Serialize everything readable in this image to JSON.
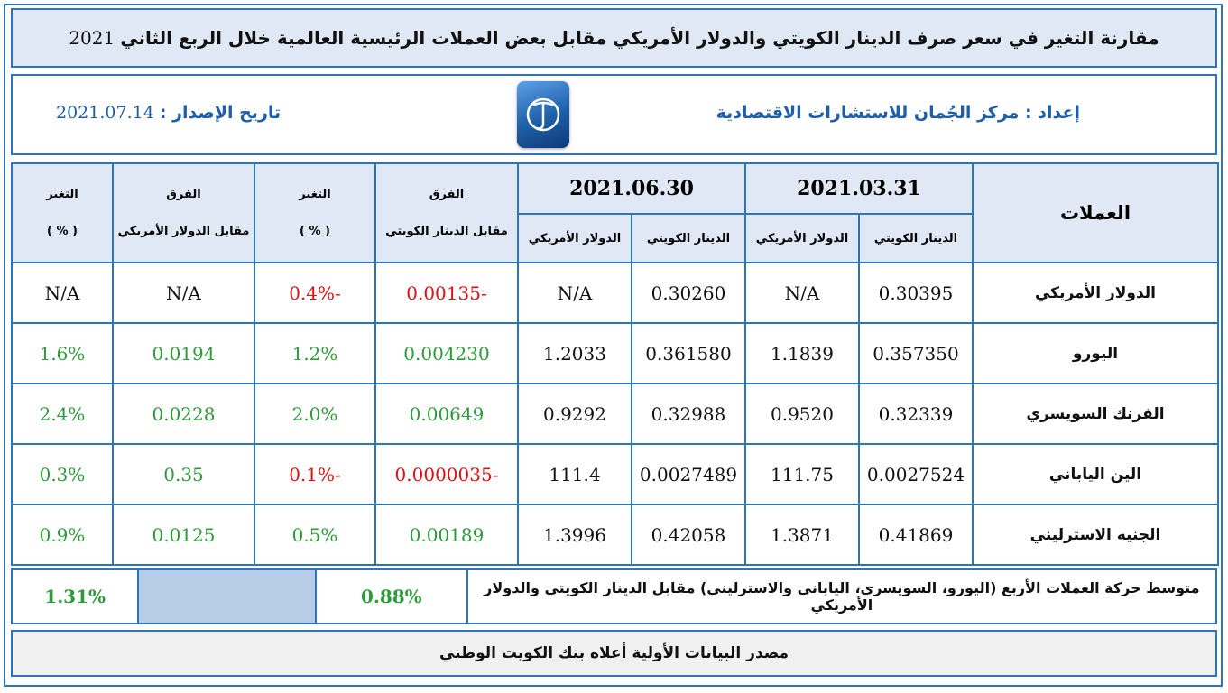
{
  "title": {
    "text": "مقارنة التغير في سعر صرف الدينار الكويتي والدولار الأمريكي مقابل بعض العملات الرئيسية العالمية خلال الربع الثاني",
    "year": "2021"
  },
  "info": {
    "prepared_label": "إعداد :",
    "prepared_by": "مركز الجُمان للاستشارات الاقتصادية",
    "issue_label": "تاريخ الإصدار :",
    "issue_date": "2021.07.14"
  },
  "table": {
    "currencies_header": "العملات",
    "date1": "2021.03.31",
    "date2": "2021.06.30",
    "kwd": "الدينار الكويتي",
    "usd": "الدولار الأمريكي",
    "diff": "الفرق",
    "vs_kwd": "مقابل الدينار الكويتي",
    "change": "التغير",
    "pct": "( % )",
    "vs_usd": "مقابل الدولار الأمريكي",
    "rows": [
      {
        "name": "الدولار الأمريكي",
        "kwd1": "0.30395",
        "usd1": "N/A",
        "kwd2": "0.30260",
        "usd2": "N/A",
        "diff_kwd": "-0.00135",
        "chg_kwd": "-0.4%",
        "diff_usd": "N/A",
        "chg_usd": "N/A"
      },
      {
        "name": "اليورو",
        "kwd1": "0.357350",
        "usd1": "1.1839",
        "kwd2": "0.361580",
        "usd2": "1.2033",
        "diff_kwd": "0.004230",
        "chg_kwd": "1.2%",
        "diff_usd": "0.0194",
        "chg_usd": "1.6%"
      },
      {
        "name": "الفرنك السويسري",
        "kwd1": "0.32339",
        "usd1": "0.9520",
        "kwd2": "0.32988",
        "usd2": "0.9292",
        "diff_kwd": "0.00649",
        "chg_kwd": "2.0%",
        "diff_usd": "0.0228",
        "chg_usd": "2.4%"
      },
      {
        "name": "الين الياباني",
        "kwd1": "0.0027524",
        "usd1": "111.75",
        "kwd2": "0.0027489",
        "usd2": "111.4",
        "diff_kwd": "-0.0000035",
        "chg_kwd": "-0.1%",
        "diff_usd": "0.35",
        "chg_usd": "0.3%"
      },
      {
        "name": "الجنيه الاسترليني",
        "kwd1": "0.41869",
        "usd1": "1.3871",
        "kwd2": "0.42058",
        "usd2": "1.3996",
        "diff_kwd": "0.00189",
        "chg_kwd": "0.5%",
        "diff_usd": "0.0125",
        "chg_usd": "0.9%"
      }
    ]
  },
  "average": {
    "label": "متوسط حركة العملات الأربع (اليورو، السويسري، الياباني والاسترليني) مقابل الدينار الكويتي والدولار الأمريكي",
    "vs_kwd": "0.88%",
    "vs_usd": "1.31%"
  },
  "source": "مصدر البيانات الأولية أعلاه بنك الكويت الوطني",
  "colors": {
    "border": "#2e75b6",
    "header_bg": "#dfe8f4",
    "positive": "#2e9b3a",
    "negative": "#e01010",
    "text_blue": "#1f5fa8"
  },
  "logo_icon": "aljuman-logo-icon"
}
